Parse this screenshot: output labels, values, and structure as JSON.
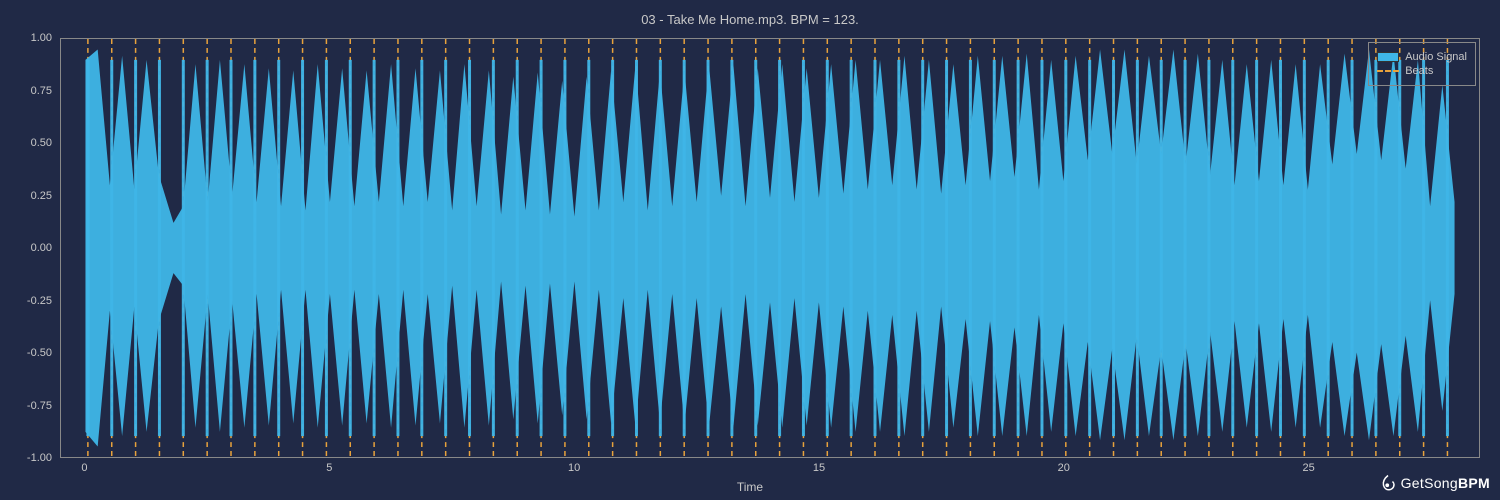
{
  "chart": {
    "type": "waveform-with-beats",
    "title": "03 - Take Me Home.mp3. BPM = 123.",
    "xlabel": "Time",
    "background_color": "#202946",
    "plot_background": "#202946",
    "text_color": "#c8c8c8",
    "border_color": "#888888",
    "waveform_color": "#3fb6e8",
    "beat_line_color": "#e8a23c",
    "beat_line_dash": "5,4",
    "beat_line_width": 1.5,
    "xlim": [
      -0.5,
      28.5
    ],
    "ylim": [
      -1.0,
      1.0
    ],
    "x_ticks": [
      0,
      5,
      10,
      15,
      20,
      25
    ],
    "y_ticks": [
      -1.0,
      -0.75,
      -0.5,
      -0.25,
      0.0,
      0.25,
      0.5,
      0.75,
      1.0
    ],
    "y_tick_labels": [
      "-1.00",
      "-0.75",
      "-0.50",
      "-0.25",
      "0.00",
      "0.25",
      "0.50",
      "0.75",
      "1.00"
    ],
    "beat_interval_sec": 0.4878,
    "beat_first": 0.05,
    "beat_count": 58,
    "waveform_envelope": [
      [
        0.0,
        0.9,
        -0.88
      ],
      [
        0.25,
        0.95,
        -0.95
      ],
      [
        0.5,
        0.3,
        -0.3
      ],
      [
        0.75,
        0.92,
        -0.9
      ],
      [
        1.0,
        0.28,
        -0.28
      ],
      [
        1.25,
        0.9,
        -0.88
      ],
      [
        1.5,
        0.35,
        -0.35
      ],
      [
        1.8,
        0.12,
        -0.12
      ],
      [
        2.0,
        0.2,
        -0.18
      ],
      [
        2.25,
        0.88,
        -0.86
      ],
      [
        2.5,
        0.22,
        -0.22
      ],
      [
        2.75,
        0.9,
        -0.88
      ],
      [
        3.0,
        0.25,
        -0.25
      ],
      [
        3.25,
        0.88,
        -0.86
      ],
      [
        3.5,
        0.22,
        -0.22
      ],
      [
        3.75,
        0.86,
        -0.85
      ],
      [
        4.0,
        0.2,
        -0.2
      ],
      [
        4.25,
        0.85,
        -0.84
      ],
      [
        4.5,
        0.18,
        -0.2
      ],
      [
        4.75,
        0.88,
        -0.86
      ],
      [
        5.0,
        0.22,
        -0.22
      ],
      [
        5.25,
        0.86,
        -0.85
      ],
      [
        5.5,
        0.2,
        -0.2
      ],
      [
        5.75,
        0.85,
        -0.84
      ],
      [
        6.0,
        0.22,
        -0.22
      ],
      [
        6.25,
        0.88,
        -0.86
      ],
      [
        6.5,
        0.2,
        -0.2
      ],
      [
        6.75,
        0.86,
        -0.85
      ],
      [
        7.0,
        0.22,
        -0.22
      ],
      [
        7.25,
        0.85,
        -0.84
      ],
      [
        7.5,
        0.18,
        -0.18
      ],
      [
        7.75,
        0.88,
        -0.86
      ],
      [
        8.0,
        0.2,
        -0.2
      ],
      [
        8.25,
        0.85,
        -0.85
      ],
      [
        8.5,
        0.16,
        -0.16
      ],
      [
        8.75,
        0.82,
        -0.82
      ],
      [
        9.0,
        0.18,
        -0.18
      ],
      [
        9.25,
        0.84,
        -0.84
      ],
      [
        9.5,
        0.16,
        -0.17
      ],
      [
        9.75,
        0.8,
        -0.8
      ],
      [
        10.0,
        0.15,
        -0.16
      ],
      [
        10.25,
        0.82,
        -0.82
      ],
      [
        10.5,
        0.18,
        -0.2
      ],
      [
        10.75,
        0.85,
        -0.84
      ],
      [
        11.0,
        0.22,
        -0.24
      ],
      [
        11.25,
        0.88,
        -0.86
      ],
      [
        11.5,
        0.18,
        -0.2
      ],
      [
        11.75,
        0.85,
        -0.84
      ],
      [
        12.0,
        0.2,
        -0.22
      ],
      [
        12.25,
        0.85,
        -0.85
      ],
      [
        12.5,
        0.22,
        -0.24
      ],
      [
        12.75,
        0.88,
        -0.86
      ],
      [
        13.0,
        0.25,
        -0.28
      ],
      [
        13.25,
        0.88,
        -0.86
      ],
      [
        13.5,
        0.2,
        -0.22
      ],
      [
        13.75,
        0.86,
        -0.85
      ],
      [
        14.0,
        0.24,
        -0.26
      ],
      [
        14.25,
        0.88,
        -0.86
      ],
      [
        14.5,
        0.22,
        -0.24
      ],
      [
        14.75,
        0.86,
        -0.85
      ],
      [
        15.0,
        0.24,
        -0.26
      ],
      [
        15.25,
        0.88,
        -0.86
      ],
      [
        15.5,
        0.26,
        -0.28
      ],
      [
        15.75,
        0.9,
        -0.88
      ],
      [
        16.0,
        0.28,
        -0.3
      ],
      [
        16.25,
        0.9,
        -0.88
      ],
      [
        16.5,
        0.3,
        -0.32
      ],
      [
        16.75,
        0.92,
        -0.9
      ],
      [
        17.0,
        0.28,
        -0.3
      ],
      [
        17.25,
        0.9,
        -0.88
      ],
      [
        17.5,
        0.26,
        -0.28
      ],
      [
        17.75,
        0.88,
        -0.86
      ],
      [
        18.0,
        0.3,
        -0.34
      ],
      [
        18.25,
        0.92,
        -0.9
      ],
      [
        18.5,
        0.32,
        -0.35
      ],
      [
        18.75,
        0.92,
        -0.9
      ],
      [
        19.0,
        0.34,
        -0.38
      ],
      [
        19.25,
        0.93,
        -0.9
      ],
      [
        19.5,
        0.28,
        -0.32
      ],
      [
        19.75,
        0.9,
        -0.88
      ],
      [
        20.0,
        0.32,
        -0.36
      ],
      [
        20.25,
        0.92,
        -0.9
      ],
      [
        20.5,
        0.42,
        -0.45
      ],
      [
        20.75,
        0.95,
        -0.92
      ],
      [
        21.0,
        0.45,
        -0.48
      ],
      [
        21.25,
        0.95,
        -0.92
      ],
      [
        21.5,
        0.4,
        -0.42
      ],
      [
        21.75,
        0.92,
        -0.9
      ],
      [
        22.0,
        0.45,
        -0.48
      ],
      [
        22.25,
        0.95,
        -0.92
      ],
      [
        22.5,
        0.4,
        -0.45
      ],
      [
        22.75,
        0.93,
        -0.9
      ],
      [
        23.0,
        0.35,
        -0.4
      ],
      [
        23.25,
        0.9,
        -0.88
      ],
      [
        23.5,
        0.3,
        -0.35
      ],
      [
        23.75,
        0.88,
        -0.86
      ],
      [
        24.0,
        0.32,
        -0.36
      ],
      [
        24.25,
        0.9,
        -0.88
      ],
      [
        24.5,
        0.3,
        -0.34
      ],
      [
        24.75,
        0.88,
        -0.86
      ],
      [
        25.0,
        0.28,
        -0.32
      ],
      [
        25.25,
        0.88,
        -0.86
      ],
      [
        25.5,
        0.4,
        -0.45
      ],
      [
        25.75,
        0.93,
        -0.9
      ],
      [
        26.0,
        0.45,
        -0.5
      ],
      [
        26.25,
        0.95,
        -0.92
      ],
      [
        26.5,
        0.42,
        -0.46
      ],
      [
        26.75,
        0.93,
        -0.9
      ],
      [
        27.0,
        0.38,
        -0.42
      ],
      [
        27.25,
        0.9,
        -0.88
      ],
      [
        27.5,
        0.2,
        -0.25
      ],
      [
        27.75,
        0.78,
        -0.78
      ],
      [
        28.0,
        0.22,
        -0.22
      ]
    ],
    "legend": {
      "items": [
        {
          "label": "Audio Signal",
          "type": "fill",
          "color": "#3fb6e8"
        },
        {
          "label": "Beats",
          "type": "dash",
          "color": "#e8a23c"
        }
      ]
    },
    "watermark": {
      "text_prefix": "GetSong",
      "text_suffix": "BPM",
      "color": "#ffffff"
    }
  }
}
